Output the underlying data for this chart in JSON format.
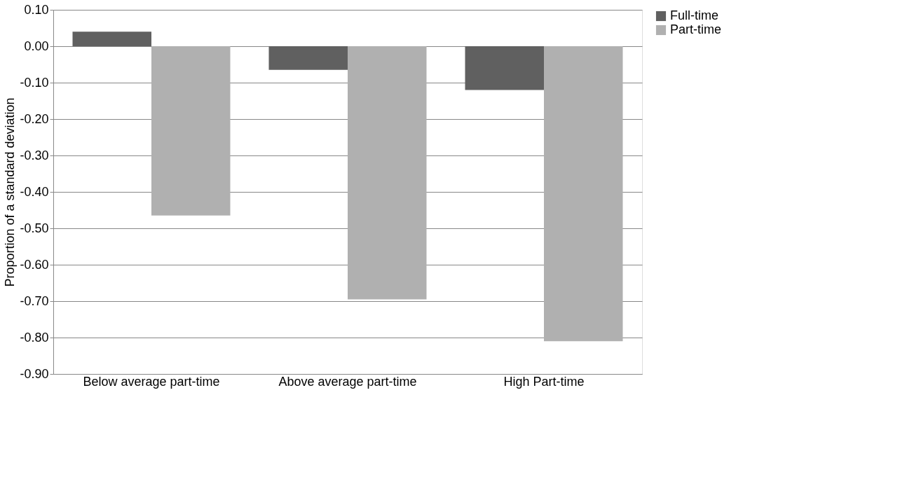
{
  "chart_data": {
    "type": "bar",
    "ylabel": "Proportion of a standard deviation",
    "categories": [
      "Below average part-time",
      "Above average part-time",
      "High Part-time"
    ],
    "series": [
      {
        "name": "Full-time",
        "color": "#606060",
        "values": [
          0.04,
          -0.065,
          -0.12
        ]
      },
      {
        "name": "Part-time",
        "color": "#b0b0b0",
        "values": [
          -0.465,
          -0.695,
          -0.81
        ]
      }
    ],
    "ylim": [
      -0.9,
      0.1
    ],
    "yticks": [
      {
        "value": -0.9,
        "label": "-0.90"
      },
      {
        "value": -0.8,
        "label": "-0.80"
      },
      {
        "value": -0.7,
        "label": "-0.70"
      },
      {
        "value": -0.6,
        "label": "-0.60"
      },
      {
        "value": -0.5,
        "label": "-0.50"
      },
      {
        "value": -0.4,
        "label": "-0.40"
      },
      {
        "value": -0.3,
        "label": "-0.30"
      },
      {
        "value": -0.2,
        "label": "-0.20"
      },
      {
        "value": -0.1,
        "label": "-0.10"
      },
      {
        "value": 0.0,
        "label": "0.00"
      },
      {
        "value": 0.1,
        "label": "0.10"
      }
    ],
    "grid": "y",
    "legend": "right"
  }
}
